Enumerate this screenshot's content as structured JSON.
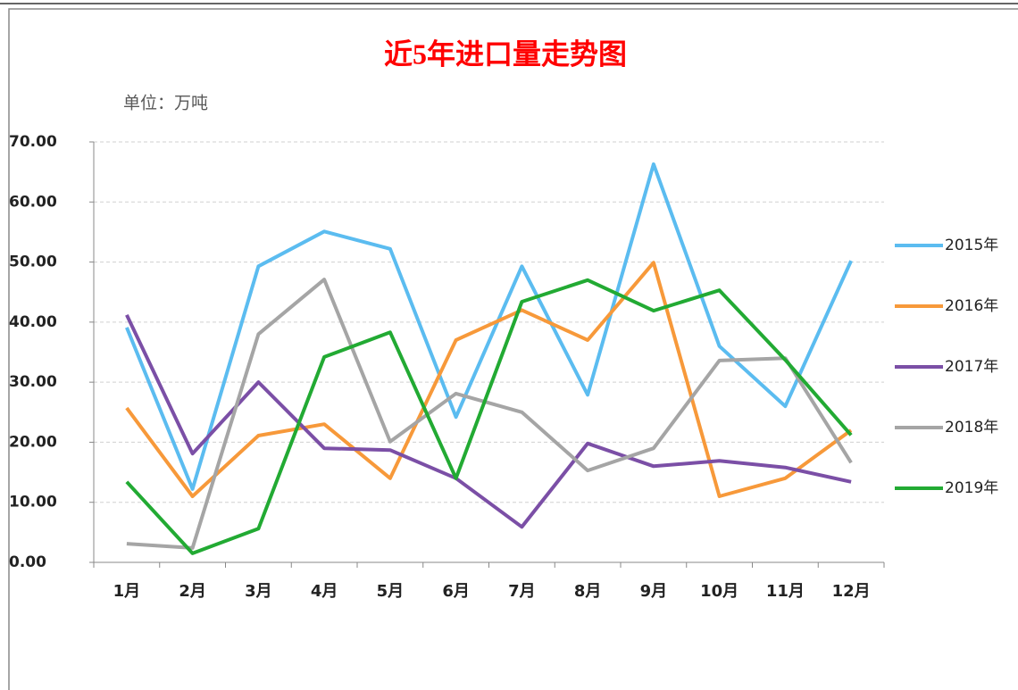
{
  "chart_data": {
    "type": "line",
    "title": "近5年进口量走势图",
    "subtitle": "单位：万吨",
    "categories": [
      "1月",
      "2月",
      "3月",
      "4月",
      "5月",
      "6月",
      "7月",
      "8月",
      "9月",
      "10月",
      "11月",
      "12月"
    ],
    "series": [
      {
        "name": "2015年",
        "color": "#5bbcf0",
        "values": [
          39.1,
          12.2,
          49.3,
          55.1,
          52.2,
          24.2,
          49.3,
          27.9,
          66.3,
          36.0,
          26.0,
          50.2
        ]
      },
      {
        "name": "2016年",
        "color": "#f7993a",
        "values": [
          25.7,
          11.0,
          21.1,
          23.0,
          14.0,
          37.0,
          42.0,
          37.0,
          49.9,
          11.0,
          14.0,
          22.0
        ]
      },
      {
        "name": "2017年",
        "color": "#7b4fa6",
        "values": [
          41.2,
          18.1,
          30.0,
          19.0,
          18.7,
          14.0,
          5.9,
          19.8,
          16.0,
          16.9,
          15.8,
          13.4
        ]
      },
      {
        "name": "2018年",
        "color": "#a5a5a5",
        "values": [
          3.1,
          2.4,
          38.0,
          47.1,
          20.1,
          28.1,
          25.0,
          15.3,
          19.0,
          33.6,
          34.0,
          16.6
        ]
      },
      {
        "name": "2019年",
        "color": "#22aa33",
        "values": [
          13.4,
          1.5,
          5.6,
          34.2,
          38.3,
          14.0,
          43.4,
          47.0,
          41.9,
          45.3,
          33.7,
          21.2
        ]
      }
    ],
    "ylim": [
      0,
      70
    ],
    "yticks": [
      {
        "value": 0,
        "label": "0.00"
      },
      {
        "value": 10,
        "label": "10.00"
      },
      {
        "value": 20,
        "label": "20.00"
      },
      {
        "value": 30,
        "label": "30.00"
      },
      {
        "value": 40,
        "label": "40.00"
      },
      {
        "value": 50,
        "label": "50.00"
      },
      {
        "value": 60,
        "label": "60.00"
      },
      {
        "value": 70,
        "label": "70.00"
      }
    ],
    "grid": true,
    "legend": "right"
  }
}
